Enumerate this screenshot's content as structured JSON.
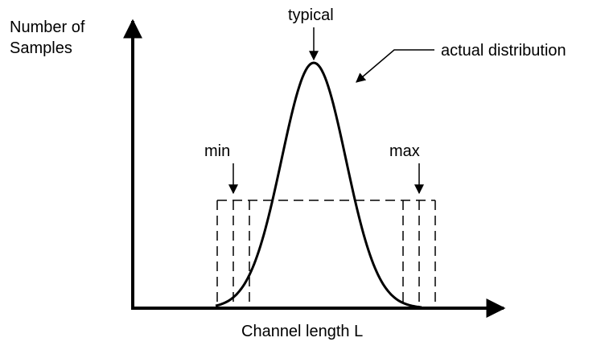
{
  "y_axis_label": {
    "line1": "Number of",
    "line2": "Samples"
  },
  "x_axis_label": "Channel length L",
  "labels": {
    "typical": "typical",
    "actual": "actual distribution",
    "min": "min",
    "max": "max"
  }
}
